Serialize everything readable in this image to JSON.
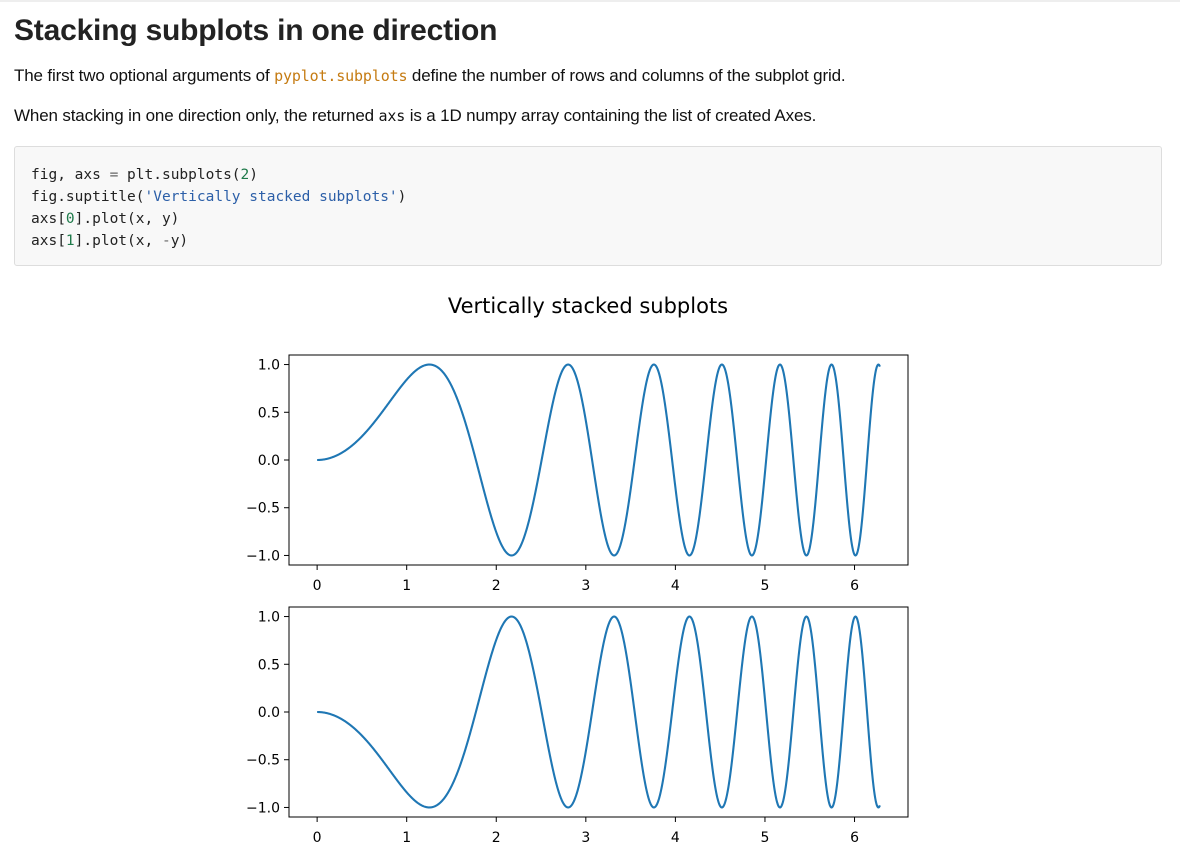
{
  "heading": "Stacking subplots in one direction",
  "paragraph1": {
    "before": "The first two optional arguments of ",
    "code": "pyplot.subplots",
    "after": " define the number of rows and columns of the subplot grid."
  },
  "paragraph2": {
    "before": "When stacking in one direction only, the returned ",
    "code": "axs",
    "after": " is a 1D numpy array containing the list of created Axes."
  },
  "code_lines": [
    "fig, axs = plt.subplots(2)",
    "fig.suptitle('Vertically stacked subplots')",
    "axs[0].plot(x, y)",
    "axs[1].plot(x, -y)"
  ],
  "chart_data": {
    "type": "line",
    "title": "Vertically stacked subplots",
    "line_color": "#1f77b4",
    "subplots": [
      {
        "series": [
          {
            "expression": "y = sin(x^2)",
            "x_range": [
              0,
              6.2832
            ],
            "values": [
              {
                "x": 0,
                "y": 0
              },
              {
                "x": 1.2533,
                "y": 1
              },
              {
                "x": 2.1708,
                "y": -1
              },
              {
                "x": 2.8025,
                "y": 1
              },
              {
                "x": 6.2832,
                "y": 0.9
              }
            ]
          }
        ],
        "xlim": [
          -0.314,
          6.597
        ],
        "ylim": [
          -1.1,
          1.1
        ],
        "xticks": [
          "0",
          "1",
          "2",
          "3",
          "4",
          "5",
          "6"
        ],
        "yticks": [
          "1.0",
          "0.5",
          "0.0",
          "−0.5",
          "−1.0"
        ]
      },
      {
        "series": [
          {
            "expression": "y = -sin(x^2)",
            "x_range": [
              0,
              6.2832
            ],
            "values": [
              {
                "x": 0,
                "y": 0
              },
              {
                "x": 1.2533,
                "y": -1
              },
              {
                "x": 2.1708,
                "y": 1
              },
              {
                "x": 2.8025,
                "y": -1
              },
              {
                "x": 6.2832,
                "y": -0.9
              }
            ]
          }
        ],
        "xlim": [
          -0.314,
          6.597
        ],
        "ylim": [
          -1.1,
          1.1
        ],
        "xticks": [
          "0",
          "1",
          "2",
          "3",
          "4",
          "5",
          "6"
        ],
        "yticks": [
          "1.0",
          "0.5",
          "0.0",
          "−0.5",
          "−1.0"
        ]
      }
    ]
  }
}
